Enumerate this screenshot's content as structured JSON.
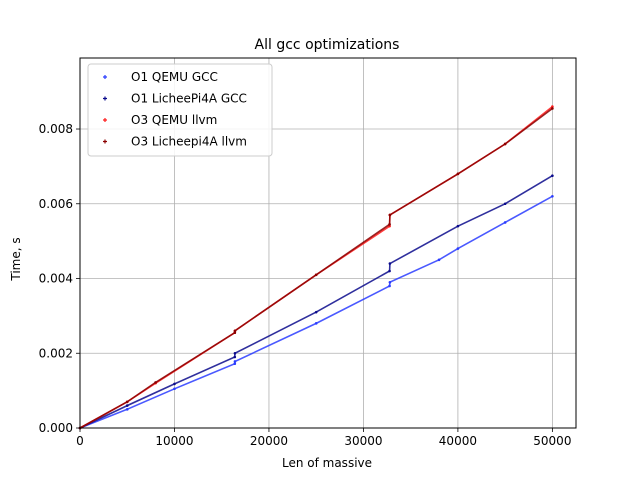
{
  "chart_data": {
    "type": "scatter",
    "title": "All gcc optimizations",
    "xlabel": "Len of massive",
    "ylabel": "Time, s",
    "xlim": [
      0,
      52500
    ],
    "ylim": [
      0,
      0.0099
    ],
    "x_ticks": [
      0,
      10000,
      20000,
      30000,
      40000,
      50000
    ],
    "x_tick_labels": [
      "0",
      "10000",
      "20000",
      "30000",
      "40000",
      "50000"
    ],
    "y_ticks": [
      0,
      0.002,
      0.004,
      0.006,
      0.008
    ],
    "y_tick_labels": [
      "0.000",
      "0.002",
      "0.004",
      "0.006",
      "0.008"
    ],
    "grid": true,
    "legend_position": "top-left",
    "series": [
      {
        "name": "O1 QEMU GCC",
        "color": "#2a3cff",
        "x": [
          0,
          5000,
          10000,
          16384,
          16400,
          25000,
          32768,
          32800,
          38000,
          40000,
          45000,
          50000
        ],
        "y": [
          0,
          0.0005,
          0.00105,
          0.00172,
          0.00178,
          0.0028,
          0.0038,
          0.0039,
          0.0045,
          0.0048,
          0.0055,
          0.0062
        ]
      },
      {
        "name": "O1 LicheePi4A GCC",
        "color": "#0a0a8c",
        "x": [
          0,
          5000,
          10000,
          16384,
          16400,
          25000,
          32768,
          32800,
          40000,
          45000,
          50000
        ],
        "y": [
          0,
          0.0006,
          0.00118,
          0.0019,
          0.002,
          0.0031,
          0.0042,
          0.0044,
          0.0054,
          0.006,
          0.00675
        ]
      },
      {
        "name": "O3 QEMU llvm",
        "color": "#ff1a1a",
        "x": [
          0,
          5000,
          8000,
          16384,
          16400,
          25000,
          32768,
          32800,
          40000,
          45000,
          50000
        ],
        "y": [
          0,
          0.0007,
          0.0012,
          0.00255,
          0.0026,
          0.0041,
          0.0054,
          0.0057,
          0.0068,
          0.0076,
          0.0086
        ]
      },
      {
        "name": "O3 Licheepi4A llvm",
        "color": "#8b0000",
        "x": [
          0,
          5000,
          8000,
          16384,
          16400,
          25000,
          32768,
          32800,
          40000,
          45000,
          50000
        ],
        "y": [
          0,
          0.0007,
          0.00122,
          0.00255,
          0.0026,
          0.0041,
          0.00545,
          0.0057,
          0.0068,
          0.0076,
          0.00855
        ]
      }
    ]
  }
}
